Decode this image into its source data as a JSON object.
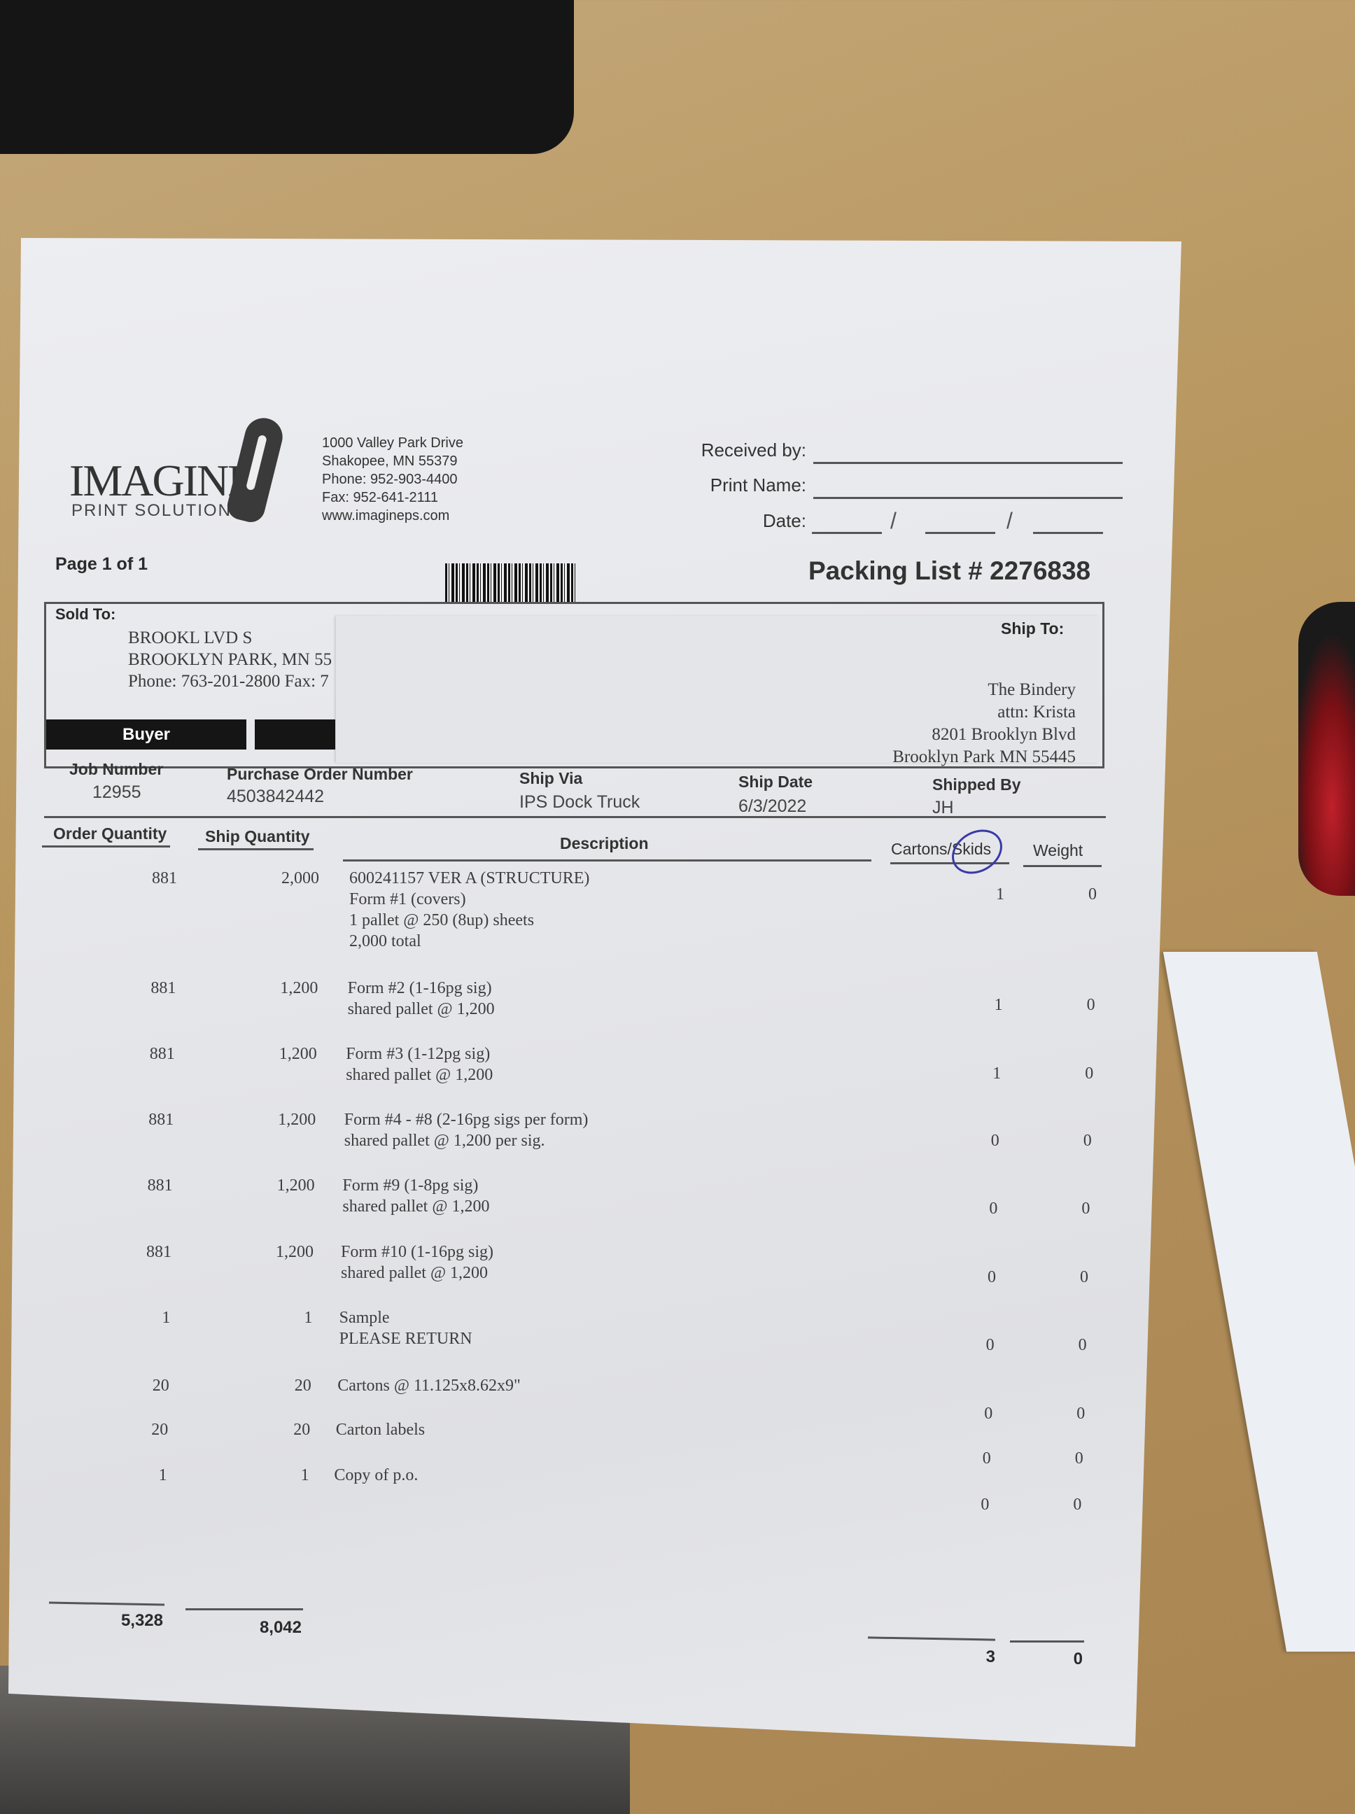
{
  "company": {
    "logo_text": "IMAGINE",
    "logo_subtext": "PRINT SOLUTIONS",
    "address_lines": [
      "1000 Valley Park Drive",
      "Shakopee, MN  55379",
      "Phone: 952-903-4400",
      "Fax: 952-641-2111",
      "www.imagineps.com"
    ]
  },
  "signature": {
    "received_by": "Received by:",
    "print_name": "Print Name:",
    "date": "Date:",
    "date_sep": "/"
  },
  "page_label": "Page 1 of 1",
  "title": "Packing List # 2276838",
  "sold_to": {
    "label": "Sold To:",
    "lines": [
      "BROOKL    LVD  S",
      "BROOKLYN PARK, MN 55",
      "Phone: 763-201-2800  Fax: 7"
    ]
  },
  "ship_to": {
    "label": "Ship To:",
    "lines": [
      "The Bindery",
      "attn: Krista",
      "8201 Brooklyn Blvd",
      "Brooklyn Park MN  55445"
    ]
  },
  "buyer_label": "Buyer",
  "info": {
    "job_number_label": "Job Number",
    "job_number": "12955",
    "po_label": "Purchase Order Number",
    "po": "4503842442",
    "ship_via_label": "Ship Via",
    "ship_via": "IPS Dock Truck",
    "ship_date_label": "Ship Date",
    "ship_date": "6/3/2022",
    "shipped_by_label": "Shipped By",
    "shipped_by": "JH"
  },
  "columns": {
    "order_qty": "Order Quantity",
    "ship_qty": "Ship Quantity",
    "description": "Description",
    "cartons": "Cartons/Skids",
    "weight": "Weight"
  },
  "rows": [
    {
      "order": "881",
      "ship": "2,000",
      "desc": [
        "600241157 VER A (STRUCTURE)",
        "Form #1 (covers)",
        "1 pallet @ 250 (8up) sheets",
        "2,000 total"
      ],
      "cartons": "1",
      "weight": "0"
    },
    {
      "order": "881",
      "ship": "1,200",
      "desc": [
        "Form #2 (1-16pg sig)",
        "shared pallet @ 1,200"
      ],
      "cartons": "1",
      "weight": "0"
    },
    {
      "order": "881",
      "ship": "1,200",
      "desc": [
        "Form #3 (1-12pg sig)",
        "shared pallet @ 1,200"
      ],
      "cartons": "1",
      "weight": "0"
    },
    {
      "order": "881",
      "ship": "1,200",
      "desc": [
        "Form #4 - #8 (2-16pg sigs per form)",
        "shared pallet @ 1,200 per sig."
      ],
      "cartons": "0",
      "weight": "0"
    },
    {
      "order": "881",
      "ship": "1,200",
      "desc": [
        "Form #9 (1-8pg sig)",
        "shared pallet @ 1,200"
      ],
      "cartons": "0",
      "weight": "0"
    },
    {
      "order": "881",
      "ship": "1,200",
      "desc": [
        "Form #10 (1-16pg sig)",
        "shared pallet @ 1,200"
      ],
      "cartons": "0",
      "weight": "0"
    },
    {
      "order": "1",
      "ship": "1",
      "desc": [
        "Sample",
        "PLEASE RETURN"
      ],
      "cartons": "0",
      "weight": "0"
    },
    {
      "order": "20",
      "ship": "20",
      "desc": [
        "Cartons @ 11.125x8.62x9\""
      ],
      "cartons": "0",
      "weight": "0"
    },
    {
      "order": "20",
      "ship": "20",
      "desc": [
        "Carton labels"
      ],
      "cartons": "0",
      "weight": "0"
    },
    {
      "order": "1",
      "ship": "1",
      "desc": [
        "Copy of p.o."
      ],
      "cartons": "0",
      "weight": "0"
    }
  ],
  "totals": {
    "order": "5,328",
    "ship": "8,042",
    "cartons": "3",
    "weight": "0"
  },
  "colors": {
    "pen_circle": "#3a3aa8",
    "buyer_bar": "#151515"
  }
}
